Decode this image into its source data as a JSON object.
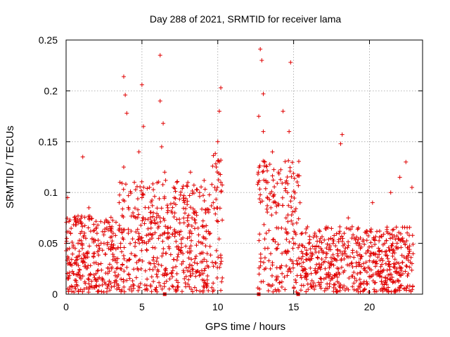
{
  "chart_data": {
    "type": "scatter",
    "title": "Day 288 of 2021, SRMTID for receiver lama",
    "xlabel": "GPS time / hours",
    "ylabel": "SRMTID / TECUs",
    "xlim": [
      0,
      23.5
    ],
    "ylim": [
      0,
      0.25
    ],
    "xticks": [
      0,
      5,
      10,
      15,
      20
    ],
    "xtick_labels": [
      "0",
      "5",
      "10",
      "15",
      "20"
    ],
    "yticks": [
      0,
      0.05,
      0.1,
      0.15,
      0.2,
      0.25
    ],
    "ytick_labels": [
      "0",
      "0.05",
      "0.1",
      "0.15",
      "0.2",
      "0.25"
    ],
    "grid": true,
    "marker": "+",
    "color": "#e00000",
    "data_gap_hours": [
      10.3,
      12.6
    ],
    "flagged_points_x": [
      6.5,
      12.7,
      15.3
    ],
    "series": [
      {
        "name": "SRMTID",
        "x": [
          0.0,
          0.1,
          0.2,
          0.3,
          0.5,
          0.6,
          0.8,
          1.0,
          1.1,
          1.3,
          1.5,
          1.6,
          1.8,
          2.0,
          2.1,
          2.3,
          2.5,
          2.6,
          2.8,
          3.0,
          3.1,
          3.3,
          3.5,
          3.6,
          3.8,
          3.8,
          3.9,
          4.0,
          4.1,
          4.3,
          4.5,
          4.6,
          4.8,
          5.0,
          5.0,
          5.1,
          5.3,
          5.5,
          5.6,
          5.8,
          6.0,
          6.2,
          6.2,
          6.3,
          6.4,
          6.5,
          6.7,
          6.8,
          7.0,
          7.2,
          7.3,
          7.5,
          7.7,
          7.8,
          8.0,
          8.2,
          8.3,
          8.5,
          8.7,
          8.8,
          9.0,
          9.2,
          9.3,
          9.5,
          9.7,
          9.8,
          9.9,
          10.0,
          10.1,
          10.2,
          10.2,
          12.7,
          12.8,
          12.9,
          13.0,
          13.0,
          13.1,
          13.2,
          13.3,
          13.5,
          13.6,
          13.8,
          14.0,
          14.2,
          14.3,
          14.5,
          14.6,
          14.7,
          14.8,
          15.0,
          15.2,
          15.4,
          15.6,
          15.8,
          16.0,
          16.2,
          16.4,
          16.6,
          16.8,
          17.0,
          17.2,
          17.4,
          17.6,
          17.8,
          18.0,
          18.1,
          18.2,
          18.4,
          18.6,
          18.8,
          19.0,
          19.2,
          19.4,
          19.6,
          19.8,
          20.0,
          20.2,
          20.4,
          20.6,
          20.8,
          21.0,
          21.2,
          21.4,
          21.6,
          21.8,
          22.0,
          22.2,
          22.4,
          22.6,
          22.8
        ],
        "y": [
          0.05,
          0.095,
          0.03,
          0.06,
          0.02,
          0.045,
          0.07,
          0.035,
          0.135,
          0.055,
          0.085,
          0.02,
          0.04,
          0.065,
          0.015,
          0.03,
          0.05,
          0.01,
          0.045,
          0.025,
          0.06,
          0.035,
          0.09,
          0.05,
          0.125,
          0.214,
          0.196,
          0.178,
          0.06,
          0.04,
          0.11,
          0.075,
          0.14,
          0.095,
          0.206,
          0.165,
          0.05,
          0.105,
          0.065,
          0.03,
          0.07,
          0.235,
          0.19,
          0.145,
          0.168,
          0.12,
          0.085,
          0.045,
          0.08,
          0.06,
          0.11,
          0.07,
          0.04,
          0.09,
          0.055,
          0.12,
          0.075,
          0.035,
          0.065,
          0.1,
          0.05,
          0.08,
          0.04,
          0.06,
          0.09,
          0.105,
          0.125,
          0.15,
          0.18,
          0.203,
          0.11,
          0.175,
          0.241,
          0.23,
          0.16,
          0.197,
          0.13,
          0.06,
          0.11,
          0.085,
          0.14,
          0.09,
          0.12,
          0.065,
          0.18,
          0.075,
          0.1,
          0.16,
          0.228,
          0.05,
          0.07,
          0.03,
          0.04,
          0.02,
          0.05,
          0.035,
          0.06,
          0.025,
          0.045,
          0.015,
          0.04,
          0.03,
          0.05,
          0.02,
          0.06,
          0.148,
          0.157,
          0.04,
          0.075,
          0.03,
          0.055,
          0.02,
          0.045,
          0.03,
          0.06,
          0.025,
          0.09,
          0.04,
          0.02,
          0.035,
          0.05,
          0.015,
          0.1,
          0.03,
          0.045,
          0.115,
          0.02,
          0.13,
          0.04,
          0.105
        ]
      }
    ]
  }
}
